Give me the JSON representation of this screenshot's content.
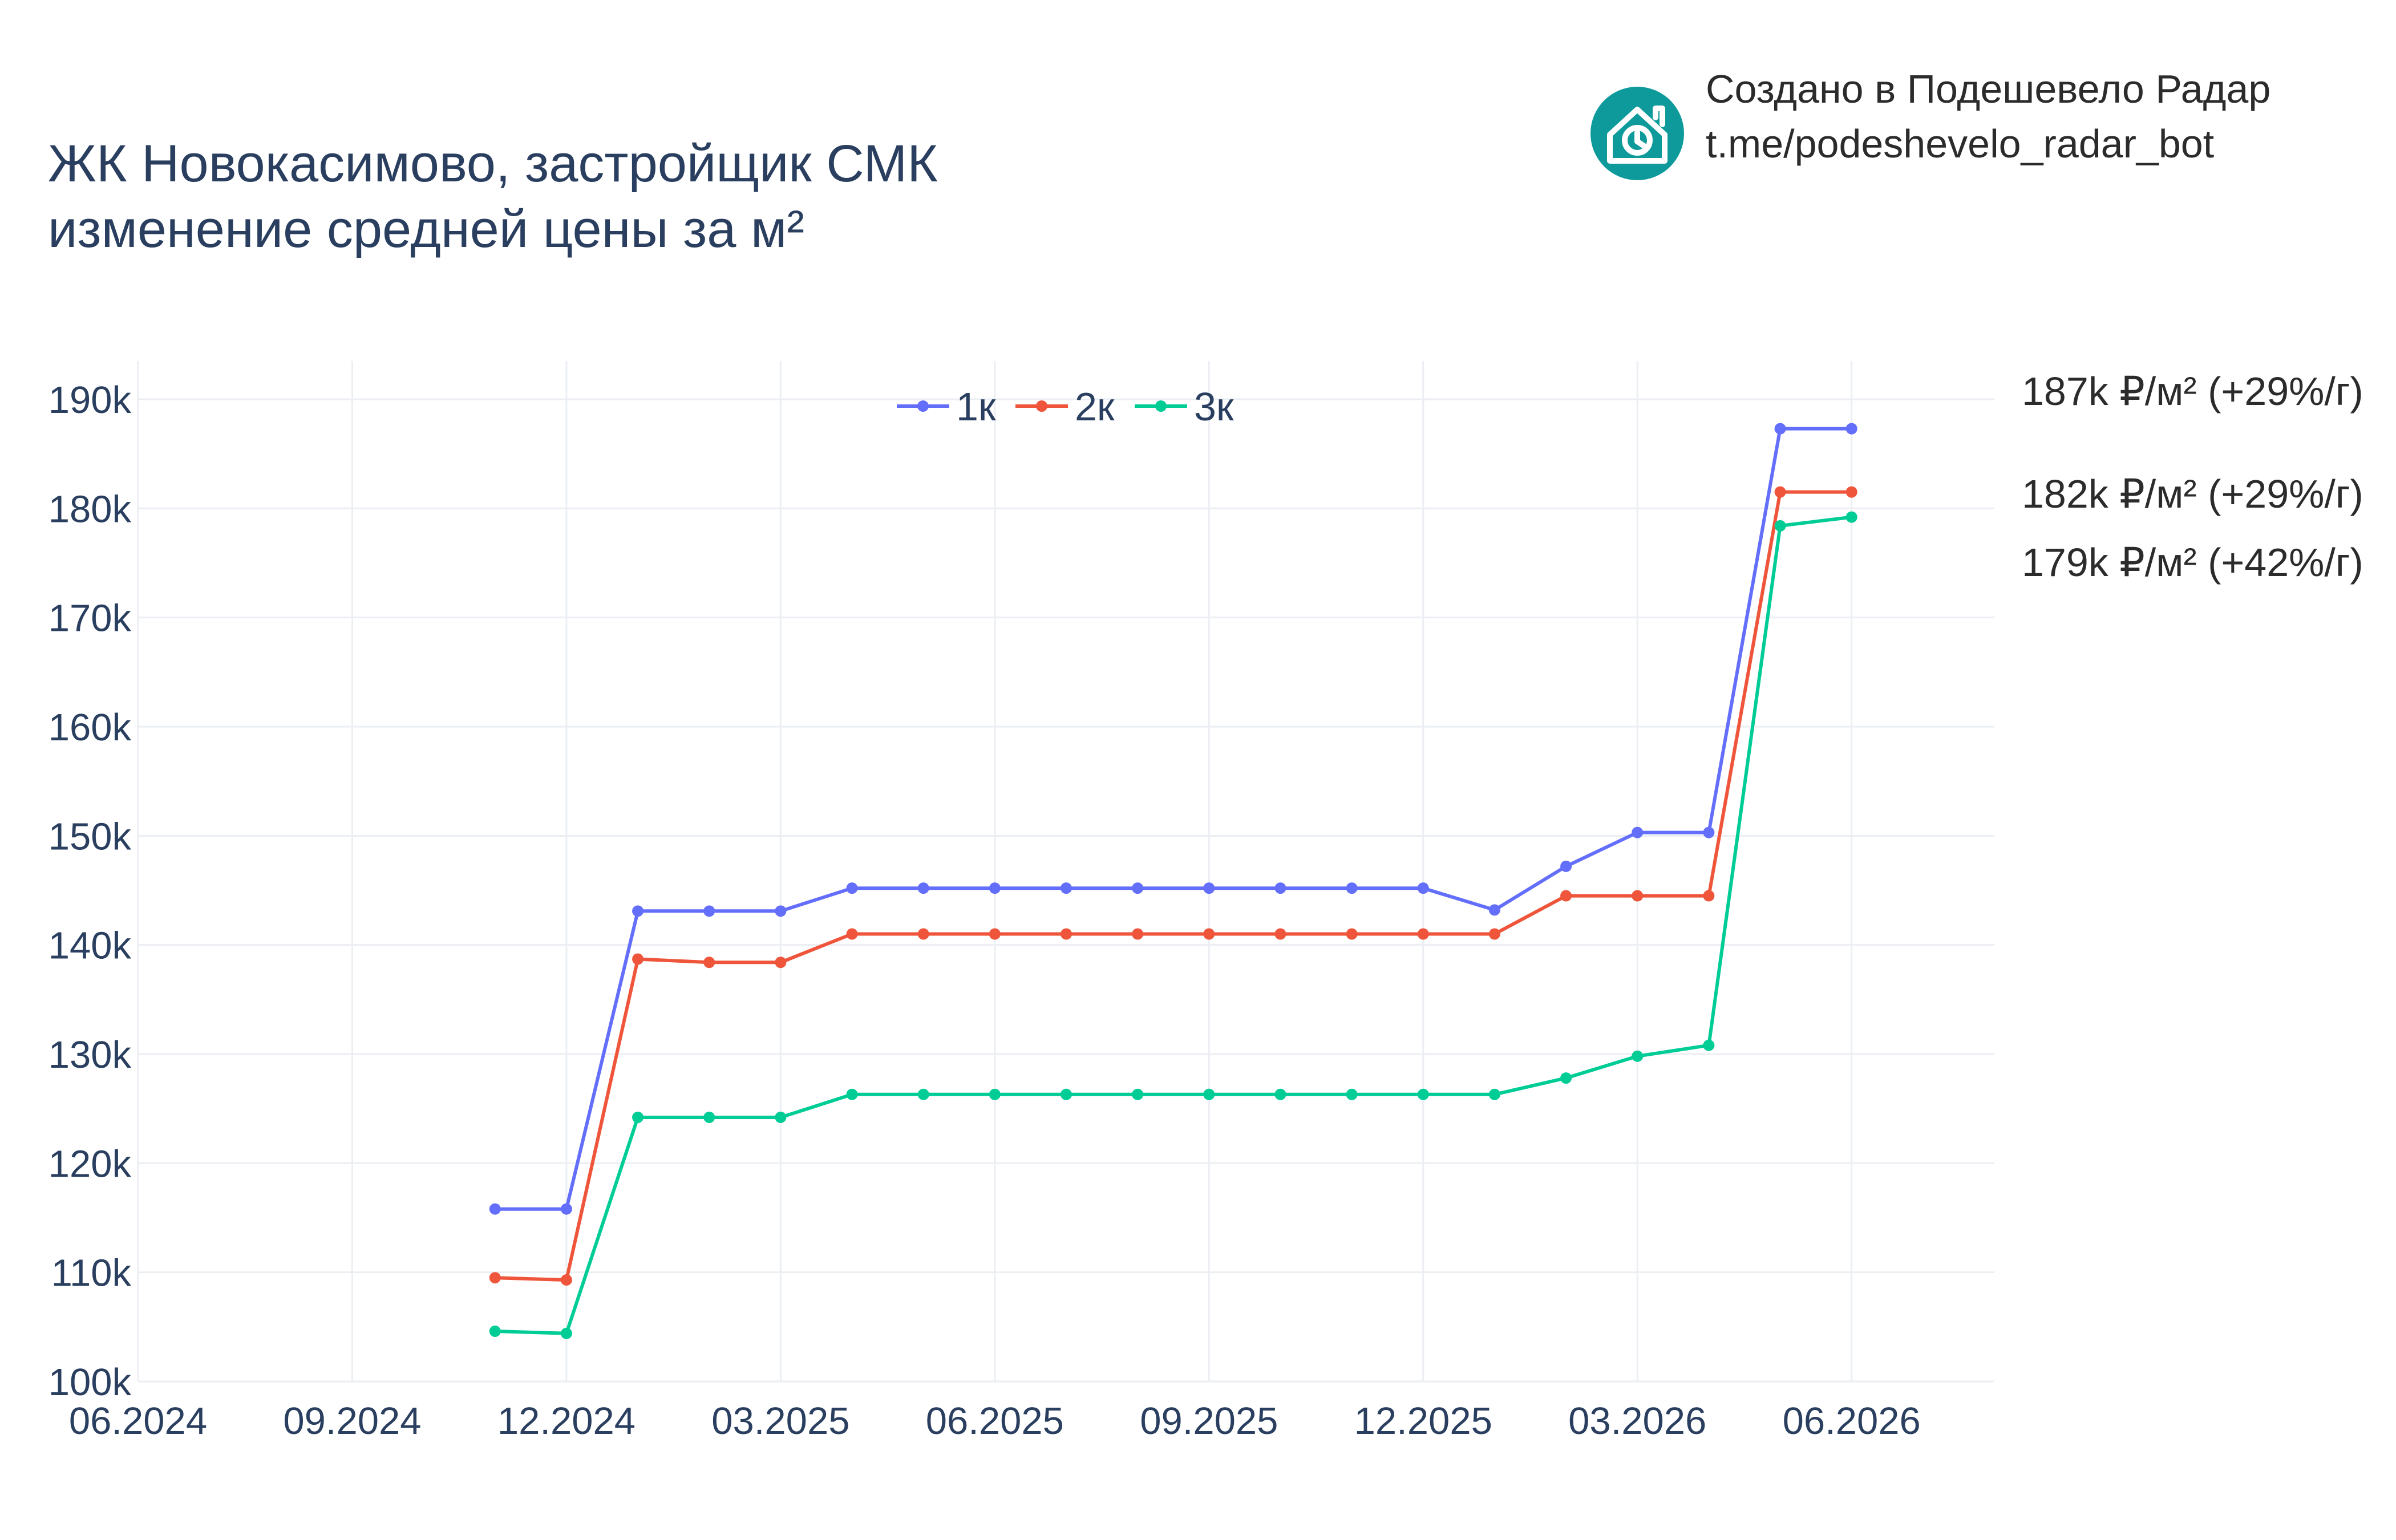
{
  "title": {
    "line1": "ЖК Новокасимово, застройщик СМК",
    "line2": "изменение средней цены за м²"
  },
  "branding": {
    "line1": "Создано в Подешевело Радар",
    "line2": "t.me/podeshevelo_radar_bot",
    "logo_icon": "house-clock-icon",
    "logo_color": "#0e9a9a"
  },
  "chart_data": {
    "type": "line",
    "x": [
      "11.2024",
      "12.2024",
      "01.2025",
      "02.2025",
      "03.2025",
      "04.2025",
      "05.2025",
      "06.2025",
      "07.2025",
      "08.2025",
      "09.2025",
      "10.2025",
      "11.2025",
      "12.2025",
      "01.2026",
      "02.2026",
      "03.2026",
      "04.2026",
      "05.2026",
      "06.2026"
    ],
    "x_ticks": [
      "06.2024",
      "09.2024",
      "12.2024",
      "03.2025",
      "06.2025",
      "09.2025",
      "12.2025",
      "03.2026",
      "06.2026"
    ],
    "y_ticks": [
      "100k",
      "110k",
      "120k",
      "130k",
      "140k",
      "150k",
      "160k",
      "170k",
      "180k",
      "190k"
    ],
    "ylim": [
      100000,
      193500
    ],
    "xlim": [
      "06.2024",
      "08.2026"
    ],
    "grid": true,
    "legend_position": "top-center",
    "series": [
      {
        "name": "1к",
        "color": "#636efa",
        "values": [
          115800,
          115800,
          143100,
          143100,
          143100,
          145200,
          145200,
          145200,
          145200,
          145200,
          145200,
          145200,
          145200,
          145200,
          143200,
          147200,
          150300,
          150300,
          187300,
          187300
        ],
        "end_label": "187k ₽/м² (+29%/г)"
      },
      {
        "name": "2к",
        "color": "#ef553b",
        "values": [
          109500,
          109300,
          138700,
          138400,
          138400,
          141000,
          141000,
          141000,
          141000,
          141000,
          141000,
          141000,
          141000,
          141000,
          141000,
          144500,
          144500,
          144500,
          181500,
          181500
        ],
        "end_label": "182k ₽/м² (+29%/г)"
      },
      {
        "name": "3к",
        "color": "#00cc96",
        "values": [
          104600,
          104400,
          124200,
          124200,
          124200,
          126300,
          126300,
          126300,
          126300,
          126300,
          126300,
          126300,
          126300,
          126300,
          126300,
          127800,
          129800,
          130800,
          178400,
          179200
        ],
        "end_label": "179k ₽/м² (+42%/г)"
      }
    ]
  }
}
